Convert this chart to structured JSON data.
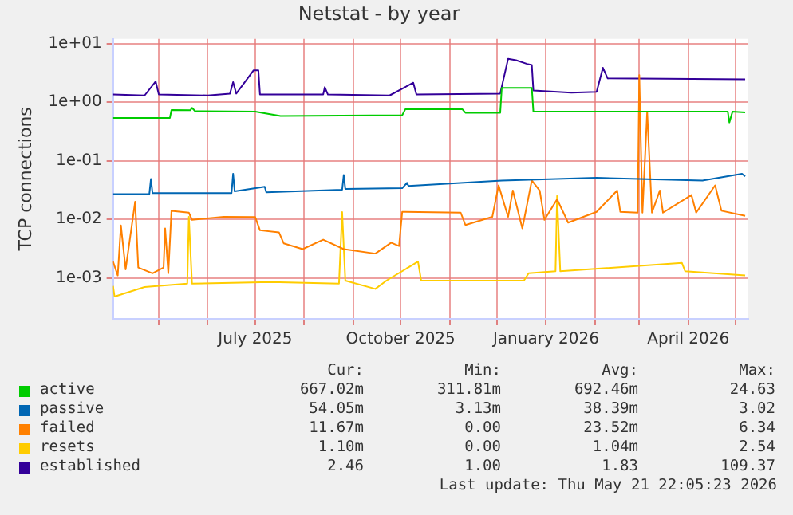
{
  "chart_data": {
    "type": "line",
    "title": "Netstat - by year",
    "ylabel": "TCP connections",
    "log": "y",
    "grid": true,
    "legend": "bottom",
    "marker": "none",
    "line_style": "solid",
    "xlim": [
      "2025-04-02",
      "2026-05-09"
    ],
    "xticks": [
      {
        "value": "2025-05-01",
        "label": null
      },
      {
        "value": "2025-06-01",
        "label": null
      },
      {
        "value": "2025-07-01",
        "label": "July 2025"
      },
      {
        "value": "2025-08-01",
        "label": null
      },
      {
        "value": "2025-09-01",
        "label": null
      },
      {
        "value": "2025-10-01",
        "label": "October 2025"
      },
      {
        "value": "2025-11-01",
        "label": null
      },
      {
        "value": "2025-12-01",
        "label": null
      },
      {
        "value": "2026-01-01",
        "label": "January 2026"
      },
      {
        "value": "2026-02-01",
        "label": null
      },
      {
        "value": "2026-03-01",
        "label": null
      },
      {
        "value": "2026-04-01",
        "label": "April 2026"
      },
      {
        "value": "2026-05-01",
        "label": null
      }
    ],
    "ylim": [
      0.0002,
      12
    ],
    "yticks": [
      {
        "value": 0.001,
        "label": "1e-03"
      },
      {
        "value": 0.01,
        "label": "1e-02"
      },
      {
        "value": 0.1,
        "label": "1e-01"
      },
      {
        "value": 1,
        "label": "1e+00"
      },
      {
        "value": 10,
        "label": "1e+01"
      }
    ],
    "series": [
      {
        "name": "active",
        "color": "#00cc00",
        "x": [
          "2025-04-02",
          "2025-05-08",
          "2025-05-09",
          "2025-05-21",
          "2025-05-22",
          "2025-05-24",
          "2025-07-01",
          "2025-07-17",
          "2025-10-02",
          "2025-10-04",
          "2025-11-09",
          "2025-11-11",
          "2025-12-03",
          "2025-12-04",
          "2025-12-23",
          "2025-12-24",
          "2026-04-26",
          "2026-04-27",
          "2026-04-29",
          "2026-05-07"
        ],
        "values": [
          0.537,
          0.537,
          0.733,
          0.73,
          0.8,
          0.7,
          0.69,
          0.58,
          0.6,
          0.76,
          0.76,
          0.66,
          0.66,
          1.75,
          1.75,
          0.69,
          0.69,
          0.45,
          0.69,
          0.667
        ]
      },
      {
        "name": "passive",
        "color": "#0066b3",
        "x": [
          "2025-04-02",
          "2025-04-25",
          "2025-04-26",
          "2025-04-27",
          "2025-06-16",
          "2025-06-17",
          "2025-06-18",
          "2025-07-07",
          "2025-07-08",
          "2025-08-25",
          "2025-08-26",
          "2025-08-27",
          "2025-10-02",
          "2025-10-05",
          "2025-10-06",
          "2025-12-04",
          "2026-02-02",
          "2026-04-10",
          "2026-05-05",
          "2026-05-07"
        ],
        "values": [
          0.027,
          0.027,
          0.049,
          0.028,
          0.028,
          0.06,
          0.03,
          0.036,
          0.029,
          0.032,
          0.057,
          0.033,
          0.034,
          0.042,
          0.037,
          0.046,
          0.051,
          0.046,
          0.06,
          0.054
        ]
      },
      {
        "name": "failed",
        "color": "#ff8000",
        "x": [
          "2025-04-02",
          "2025-04-05",
          "2025-04-07",
          "2025-04-10",
          "2025-04-16",
          "2025-04-18",
          "2025-04-27",
          "2025-05-04",
          "2025-05-05",
          "2025-05-07",
          "2025-05-09",
          "2025-05-20",
          "2025-05-22",
          "2025-06-11",
          "2025-07-01",
          "2025-07-04",
          "2025-07-16",
          "2025-07-19",
          "2025-07-31",
          "2025-08-13",
          "2025-08-26",
          "2025-09-15",
          "2025-09-25",
          "2025-09-30",
          "2025-10-02",
          "2025-11-08",
          "2025-11-11",
          "2025-11-28",
          "2025-12-02",
          "2025-12-08",
          "2025-12-11",
          "2025-12-17",
          "2025-12-23",
          "2025-12-28",
          "2025-12-31",
          "2026-01-08",
          "2026-01-15",
          "2026-02-02",
          "2026-02-15",
          "2026-02-17",
          "2026-02-28",
          "2026-03-01",
          "2026-03-03",
          "2026-03-06",
          "2026-03-09",
          "2026-03-14",
          "2026-03-16",
          "2026-04-03",
          "2026-04-06",
          "2026-04-18",
          "2026-04-22",
          "2026-05-07"
        ],
        "values": [
          0.0019,
          0.0011,
          0.0079,
          0.0014,
          0.02,
          0.0015,
          0.0012,
          0.0015,
          0.007,
          0.0012,
          0.014,
          0.013,
          0.0098,
          0.011,
          0.0109,
          0.0065,
          0.006,
          0.0039,
          0.0031,
          0.0045,
          0.0031,
          0.0026,
          0.004,
          0.0035,
          0.0134,
          0.013,
          0.008,
          0.011,
          0.038,
          0.011,
          0.031,
          0.007,
          0.046,
          0.031,
          0.0098,
          0.022,
          0.0088,
          0.0134,
          0.031,
          0.0134,
          0.013,
          2.9,
          0.013,
          0.69,
          0.013,
          0.031,
          0.013,
          0.026,
          0.013,
          0.038,
          0.014,
          0.0115
        ]
      },
      {
        "name": "resets",
        "color": "#ffcc00",
        "x": [
          "2025-04-02",
          "2025-04-03",
          "2025-04-22",
          "2025-05-19",
          "2025-05-20",
          "2025-05-22",
          "2025-07-11",
          "2025-08-23",
          "2025-08-25",
          "2025-08-27",
          "2025-09-15",
          "2025-09-22",
          "2025-10-12",
          "2025-10-14",
          "2025-12-18",
          "2025-12-21",
          "2026-01-07",
          "2026-01-08",
          "2026-01-10",
          "2026-03-28",
          "2026-03-30",
          "2026-05-07"
        ],
        "values": [
          0.00073,
          0.00048,
          0.0007,
          0.0008,
          0.011,
          0.0008,
          0.00085,
          0.0008,
          0.0133,
          0.0009,
          0.00065,
          0.0009,
          0.0019,
          0.0009,
          0.0009,
          0.0012,
          0.0013,
          0.025,
          0.0013,
          0.0018,
          0.0013,
          0.0011
        ]
      },
      {
        "name": "established",
        "color": "#330099",
        "x": [
          "2025-04-02",
          "2025-04-22",
          "2025-04-29",
          "2025-05-01",
          "2025-06-01",
          "2025-06-15",
          "2025-06-17",
          "2025-06-19",
          "2025-06-30",
          "2025-07-03",
          "2025-07-04",
          "2025-08-13",
          "2025-08-14",
          "2025-08-16",
          "2025-09-24",
          "2025-10-09",
          "2025-10-11",
          "2025-12-03",
          "2025-12-08",
          "2025-12-13",
          "2025-12-20",
          "2025-12-23",
          "2025-12-24",
          "2026-01-17",
          "2026-02-02",
          "2026-02-06",
          "2026-02-09",
          "2026-03-18",
          "2026-05-07"
        ],
        "values": [
          1.35,
          1.3,
          2.25,
          1.35,
          1.3,
          1.4,
          2.2,
          1.4,
          3.5,
          3.5,
          1.35,
          1.35,
          1.8,
          1.35,
          1.3,
          2.15,
          1.35,
          1.4,
          5.5,
          5.2,
          4.5,
          4.3,
          1.58,
          1.45,
          1.5,
          3.85,
          2.54,
          2.5,
          2.46
        ]
      }
    ],
    "annotations": [
      "Cur:",
      "Min:",
      "Avg:",
      "Max:",
      "667.02m",
      "311.81m",
      "692.46m",
      "24.63",
      "54.05m",
      "3.13m",
      "38.39m",
      "3.02",
      "11.67m",
      "0.00",
      "23.52m",
      "6.34",
      "1.10m",
      "0.00",
      "1.04m",
      "2.54",
      "2.46",
      "1.00",
      "1.83",
      "109.37",
      "Last update: Thu May 21 22:05:23 2026"
    ]
  }
}
